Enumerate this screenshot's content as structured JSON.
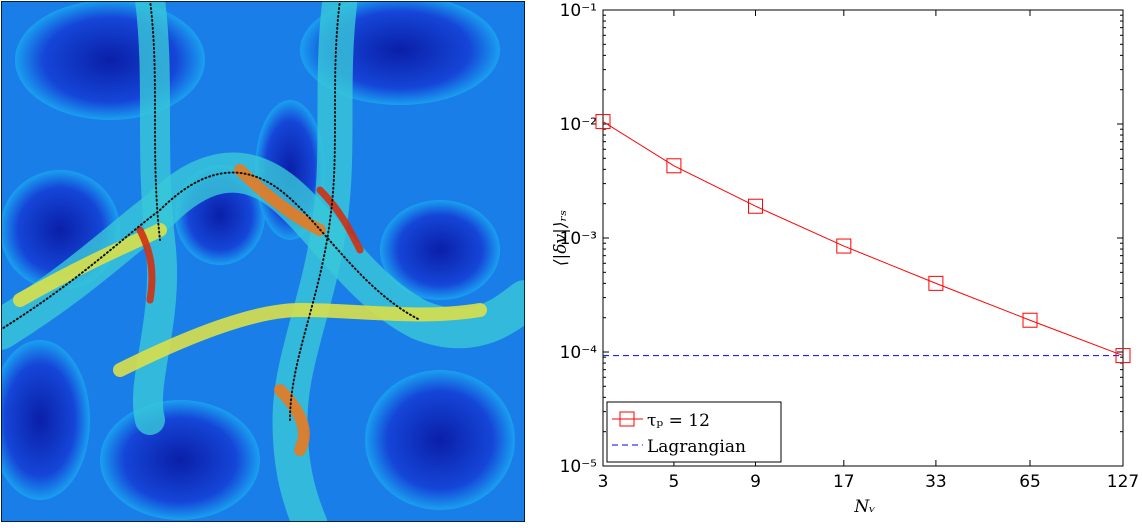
{
  "chart_data": {
    "type": "line",
    "x_label": "Nᵥ",
    "y_label": "⟨|δv|⟩ᵣₛ",
    "x": [
      3,
      5,
      9,
      17,
      33,
      65,
      127
    ],
    "xlim": [
      3,
      127
    ],
    "xticks": [
      3,
      5,
      9,
      17,
      33,
      65,
      127
    ],
    "x_scale": "log",
    "ylim": [
      1e-05,
      0.1
    ],
    "yticks": [
      {
        "value": 1e-05,
        "label": "10⁻⁵"
      },
      {
        "value": 0.0001,
        "label": "10⁻⁴"
      },
      {
        "value": 0.001,
        "label": "10⁻³"
      },
      {
        "value": 0.01,
        "label": "10⁻²"
      },
      {
        "value": 0.1,
        "label": "10⁻¹"
      }
    ],
    "y_scale": "log",
    "series": [
      {
        "name": "τₚ = 12",
        "color": "#ff0000",
        "marker": "square",
        "values": [
          0.0105,
          0.0043,
          0.0019,
          0.00085,
          0.0004,
          0.00019,
          9.3e-05
        ]
      }
    ],
    "reference_lines": [
      {
        "name": "Lagrangian",
        "color": "#0000ff",
        "style": "dashed",
        "value": 9.3e-05
      }
    ],
    "legend": "lower-left"
  }
}
